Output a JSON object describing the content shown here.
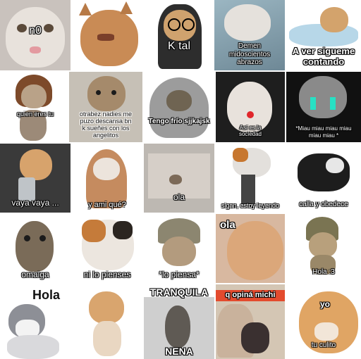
{
  "stickers": [
    {
      "caption": "n0"
    },
    {
      "caption": ""
    },
    {
      "caption": "K tal"
    },
    {
      "caption": "Demen\nmidoscientos\nabrazos"
    },
    {
      "caption": "A ver sigueme\ncontando"
    },
    {
      "caption": "quien eres tu"
    },
    {
      "caption": "otrabez nadies me\npuzo descansa bn\nk sueñes con los\nangelitos"
    },
    {
      "caption": "Tengo frío sjjkajsk"
    },
    {
      "caption": "Así es la\nsociedad"
    },
    {
      "caption": "*Miau miau miau miau\nmiau miau *"
    },
    {
      "caption": "vaya vaya ..."
    },
    {
      "caption": "y ami qué?"
    },
    {
      "caption": "ola"
    },
    {
      "caption": "sigan, estoy leyendo"
    },
    {
      "caption": "calla y obedece"
    },
    {
      "caption": "omaiga"
    },
    {
      "caption": "ni lo pienses"
    },
    {
      "caption": "*lo piensa*"
    },
    {
      "caption": "ola"
    },
    {
      "caption": "Hola :3"
    },
    {
      "caption": "Hola"
    },
    {
      "caption": ""
    },
    {
      "caption": "TRANQUILA"
    },
    {
      "caption": "q opiná michi"
    },
    {
      "caption": "yo"
    }
  ],
  "extra_captions": {
    "nena": "NENA",
    "tu_culito": "tu culito"
  },
  "colors": {
    "background": "#ffffff",
    "caption_text": "#ffffff",
    "caption_outline": "#000000"
  }
}
